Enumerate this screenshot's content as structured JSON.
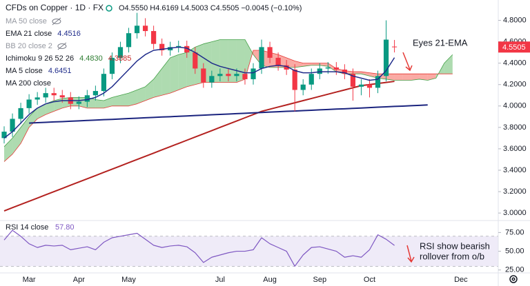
{
  "chart_data": [
    {
      "type": "candlestick",
      "title": "CFDs on Copper · 1D · FX",
      "subtitle": "O4.5550 H4.6169 L4.5003 C4.5505 −0.0045 (−0.10%)",
      "annotation": "Eyes 21-EMA",
      "categories": [
        null,
        null,
        null,
        "Mar",
        null,
        null,
        null,
        null,
        null,
        "Apr",
        null,
        null,
        null,
        null,
        null,
        "May",
        null,
        null,
        null,
        null,
        null,
        null,
        null,
        null,
        null,
        null,
        "Jul",
        null,
        null,
        null,
        null,
        null,
        "Aug",
        null,
        null,
        null,
        null,
        null,
        "Sep",
        null,
        null,
        null,
        null,
        null,
        "Oct",
        null,
        null,
        null,
        null,
        null,
        null,
        null,
        null,
        null,
        null,
        "Dec",
        null,
        null,
        null,
        null
      ],
      "open": [
        3.7,
        3.76,
        3.88,
        3.98,
        4.06,
        4.08,
        4.12,
        4.1,
        4.08,
        4.02,
        4.04,
        4.1,
        4.14,
        4.3,
        4.45,
        4.55,
        4.68,
        4.75,
        4.7,
        4.58,
        4.52,
        4.55,
        4.56,
        4.5,
        4.35,
        4.22,
        4.28,
        4.3,
        4.28,
        4.3,
        4.25,
        4.35,
        4.55,
        4.45,
        4.38,
        4.34,
        4.15,
        4.2,
        4.3,
        4.35,
        4.36,
        4.34,
        4.3,
        4.18,
        4.2,
        4.17,
        4.28,
        4.555,
        null,
        null,
        null,
        null,
        null,
        null,
        null,
        null,
        null,
        null,
        null,
        null
      ],
      "high": [
        3.81,
        3.93,
        4.03,
        4.11,
        4.13,
        4.17,
        4.17,
        4.15,
        4.13,
        4.09,
        4.15,
        4.19,
        4.35,
        4.5,
        4.6,
        4.73,
        4.87,
        4.82,
        4.75,
        4.63,
        4.6,
        4.61,
        4.61,
        4.55,
        4.4,
        4.33,
        4.35,
        4.35,
        4.35,
        4.35,
        4.4,
        4.62,
        4.6,
        4.5,
        4.43,
        4.39,
        4.25,
        4.35,
        4.4,
        4.41,
        4.41,
        4.39,
        4.35,
        4.25,
        4.25,
        4.33,
        4.8,
        4.6169,
        null,
        null,
        null,
        null,
        null,
        null,
        null,
        null,
        null,
        null,
        null,
        null
      ],
      "low": [
        3.65,
        3.71,
        3.83,
        3.93,
        4.01,
        4.03,
        4.05,
        4.03,
        3.97,
        3.97,
        3.99,
        4.05,
        4.09,
        4.25,
        4.4,
        4.5,
        4.63,
        4.65,
        4.53,
        4.47,
        4.47,
        4.5,
        4.45,
        4.3,
        4.17,
        4.17,
        4.23,
        4.23,
        4.23,
        4.2,
        4.2,
        4.3,
        4.4,
        4.33,
        4.29,
        3.95,
        4.1,
        4.15,
        4.25,
        4.3,
        4.29,
        4.25,
        4.05,
        4.1,
        4.08,
        4.12,
        4.23,
        4.5003,
        null,
        null,
        null,
        null,
        null,
        null,
        null,
        null,
        null,
        null,
        null,
        null
      ],
      "close": [
        3.76,
        3.88,
        3.98,
        4.06,
        4.08,
        4.12,
        4.1,
        4.08,
        4.02,
        4.04,
        4.1,
        4.14,
        4.3,
        4.45,
        4.55,
        4.68,
        4.75,
        4.7,
        4.58,
        4.52,
        4.55,
        4.56,
        4.5,
        4.35,
        4.22,
        4.28,
        4.3,
        4.28,
        4.3,
        4.25,
        4.35,
        4.55,
        4.45,
        4.38,
        4.34,
        4.15,
        4.2,
        4.3,
        4.35,
        4.36,
        4.34,
        4.3,
        4.18,
        4.2,
        4.17,
        4.28,
        4.62,
        4.5505,
        null,
        null,
        null,
        null,
        null,
        null,
        null,
        null,
        null,
        null,
        null,
        null
      ],
      "up_color": "#089981",
      "down_color": "#f23645",
      "series": [
        {
          "color": "#b3211f",
          "width": 2,
          "values": [
            3.02,
            3.05,
            3.08,
            3.11,
            3.14,
            3.17,
            3.2,
            3.23,
            3.26,
            3.29,
            3.32,
            3.35,
            3.38,
            3.41,
            3.44,
            3.47,
            3.5,
            3.53,
            3.56,
            3.59,
            3.62,
            3.65,
            3.68,
            3.71,
            3.74,
            3.77,
            3.8,
            3.83,
            3.86,
            3.89,
            3.92,
            3.95,
            3.97,
            3.99,
            4.01,
            4.03,
            4.05,
            4.07,
            4.09,
            4.11,
            4.13,
            4.15,
            4.17,
            4.19,
            4.2,
            4.21,
            4.22,
            4.23,
            null,
            null,
            null,
            null,
            null,
            null,
            null,
            null,
            null,
            null,
            null,
            null
          ]
        },
        {
          "color": "#1a237e",
          "width": 2,
          "values": [
            null,
            null,
            null,
            3.84,
            3.844,
            3.847,
            3.851,
            3.854,
            3.858,
            3.861,
            3.865,
            3.868,
            3.872,
            3.875,
            3.879,
            3.883,
            3.886,
            3.89,
            3.893,
            3.897,
            3.9,
            3.904,
            3.907,
            3.911,
            3.914,
            3.918,
            3.921,
            3.925,
            3.929,
            3.932,
            3.936,
            3.939,
            3.943,
            3.946,
            3.95,
            3.953,
            3.957,
            3.96,
            3.964,
            3.967,
            3.971,
            3.974,
            3.978,
            3.981,
            3.985,
            3.989,
            3.992,
            3.996,
            3.999,
            4.003,
            4.006,
            4.01,
            null,
            null,
            null,
            null,
            null,
            null,
            null,
            null
          ]
        },
        {
          "color": "#1e2b8a",
          "width": 1.5,
          "values": [
            3.7,
            3.76,
            3.84,
            3.92,
            3.98,
            4.02,
            4.04,
            4.05,
            4.05,
            4.05,
            4.06,
            4.08,
            4.12,
            4.18,
            4.26,
            4.34,
            4.42,
            4.48,
            4.52,
            4.53,
            4.54,
            4.55,
            4.54,
            4.5,
            4.45,
            4.4,
            4.37,
            4.35,
            4.33,
            4.31,
            4.31,
            4.35,
            4.37,
            4.38,
            4.37,
            4.33,
            4.31,
            4.31,
            4.32,
            4.32,
            4.32,
            4.31,
            4.28,
            4.26,
            4.24,
            4.25,
            4.33,
            4.4516,
            null,
            null,
            null,
            null,
            null,
            null,
            null,
            null,
            null,
            null,
            null,
            null
          ]
        }
      ],
      "cloud": {
        "up_color": "rgba(76,175,80,0.45)",
        "down_color": "rgba(244,67,54,0.45)",
        "span_a": [
          3.62,
          3.7,
          3.8,
          3.9,
          3.98,
          4.02,
          4.05,
          4.07,
          4.08,
          4.08,
          4.08,
          4.06,
          4.05,
          4.08,
          4.1,
          4.12,
          4.15,
          4.18,
          4.25,
          4.35,
          4.45,
          4.48,
          4.5,
          4.55,
          4.58,
          4.6,
          4.62,
          4.62,
          4.62,
          4.62,
          4.48,
          4.38,
          4.36,
          4.36,
          4.36,
          4.36,
          4.37,
          4.38,
          4.38,
          4.37,
          4.32,
          4.3,
          4.3,
          4.3,
          4.28,
          4.26,
          4.25,
          4.24,
          4.24,
          4.24,
          4.25,
          4.24,
          4.26,
          4.4,
          4.48,
          null,
          null,
          null,
          null,
          null
        ],
        "span_b": [
          3.48,
          3.55,
          3.65,
          3.8,
          3.88,
          3.92,
          3.95,
          3.98,
          4.0,
          4.0,
          3.98,
          3.98,
          3.98,
          4.0,
          4.0,
          4.0,
          4.02,
          4.05,
          4.08,
          4.1,
          4.12,
          4.15,
          4.18,
          4.2,
          4.22,
          4.22,
          4.22,
          4.22,
          4.22,
          4.25,
          4.52,
          4.52,
          4.5,
          4.48,
          4.45,
          4.42,
          4.4,
          4.4,
          4.4,
          4.4,
          4.35,
          4.33,
          4.32,
          4.32,
          4.31,
          4.3,
          4.3,
          4.3,
          4.3,
          4.3,
          4.3,
          4.3,
          4.3,
          4.3,
          4.3,
          null,
          null,
          null,
          null,
          null
        ]
      },
      "legend": [
        {
          "text": "MA 50 close",
          "hidden": true
        },
        {
          "text": "EMA 21 close",
          "values": [
            "4.4516"
          ],
          "colors": [
            "#1e2b8a"
          ]
        },
        {
          "text": "BB 20 close 2",
          "hidden": true
        },
        {
          "text": "Ichimoku 9 26 52 26",
          "values": [
            "4.4830",
            "4.3885"
          ],
          "colors": [
            "#2e7d32",
            "#c62828"
          ]
        },
        {
          "text": "MA 5 close",
          "values": [
            "4.6451"
          ],
          "colors": [
            "#1e2b8a"
          ]
        },
        {
          "text": "MA 200 close",
          "hidden": false
        }
      ],
      "ylim": [
        2.93,
        4.99
      ],
      "yticks": [
        {
          "value": 3.0,
          "label": "3.0000"
        },
        {
          "value": 3.2,
          "label": "3.2000"
        },
        {
          "value": 3.4,
          "label": "3.4000"
        },
        {
          "value": 3.6,
          "label": "3.6000"
        },
        {
          "value": 3.8,
          "label": "3.8000"
        },
        {
          "value": 4.0,
          "label": "4.0000"
        },
        {
          "value": 4.2,
          "label": "4.2000"
        },
        {
          "value": 4.4,
          "label": "4.4000"
        },
        {
          "value": 4.6,
          "label": "4.6000"
        },
        {
          "value": 4.8,
          "label": "4.8000"
        }
      ],
      "grid": false
    },
    {
      "type": "line",
      "title": "RSI 14 close",
      "value_label": "57.80",
      "annotation": [
        "RSI show bearish",
        "rollover from o/b"
      ],
      "color": "#7e57c2",
      "band": [
        30,
        70
      ],
      "band_color": "rgba(126,87,194,0.12)",
      "values": [
        65,
        78,
        70,
        60,
        55,
        58,
        57,
        58,
        52,
        54,
        56,
        52,
        62,
        68,
        70,
        72,
        74,
        66,
        58,
        55,
        57,
        58,
        56,
        48,
        35,
        42,
        45,
        48,
        50,
        50,
        52,
        68,
        60,
        55,
        50,
        30,
        45,
        55,
        56,
        53,
        50,
        42,
        44,
        42,
        52,
        72,
        66,
        57.8
      ],
      "ylim": [
        22,
        91
      ],
      "yticks": [
        {
          "value": 25,
          "label": "25.00"
        },
        {
          "value": 50,
          "label": "50.00"
        },
        {
          "value": 75,
          "label": "75.00"
        }
      ],
      "grid": false
    }
  ]
}
